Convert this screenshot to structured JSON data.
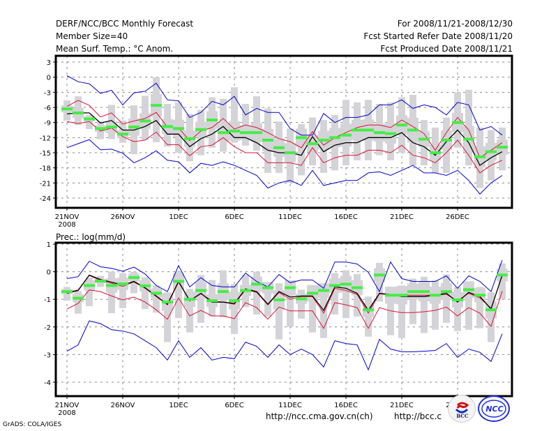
{
  "header": {
    "title": "DERF/NCC/BCC Monthly Forecast",
    "member_size": "Member Size=40",
    "variable_top": "Mean Surf. Temp.: °C Anom.",
    "period": "For 2008/11/21-2008/12/30",
    "start_date": "Fcst Started Refer Date 2008/11/20",
    "produced_date": "Fcst Produced Date 2008/11/21"
  },
  "footer": {
    "url_ncc": "http://ncc.cma.gov.cn(ch)",
    "url_bcc": "http://bcc.c",
    "credit": "GrADS: COLA/IGES",
    "logo_left": "BCC",
    "logo_right": "NCC"
  },
  "colors": {
    "envelope": "#0000cc",
    "quartile": "#dd1133",
    "median": "#000000",
    "box": "#d4d4d8",
    "marker": "#44ee44"
  },
  "chart_data": [
    {
      "type": "line",
      "title": "Mean Surf. Temp.: °C Anom.",
      "xlabel": "",
      "ylabel": "",
      "ylim": [
        -26,
        4
      ],
      "yticks": [
        3,
        0,
        -3,
        -6,
        -9,
        -12,
        -15,
        -18,
        -21,
        -24
      ],
      "ytick_labels": [
        "3",
        "0",
        "-3",
        "-6",
        "-9",
        "-12",
        "-15",
        "-18",
        "-21",
        "-24"
      ],
      "xticks": [
        0,
        5,
        10,
        15,
        20,
        25,
        30,
        35
      ],
      "xtick_labels": [
        "21NOV",
        "26NOV",
        "1DEC",
        "6DEC",
        "11DEC",
        "16DEC",
        "21DEC",
        "26DEC"
      ],
      "xtick_year": "2008",
      "grid": true,
      "x": [
        0,
        1,
        2,
        3,
        4,
        5,
        6,
        7,
        8,
        9,
        10,
        11,
        12,
        13,
        14,
        15,
        16,
        17,
        18,
        19,
        20,
        21,
        22,
        23,
        24,
        25,
        26,
        27,
        28,
        29,
        30,
        31,
        32,
        33,
        34,
        35,
        36,
        37,
        38,
        39
      ],
      "series": [
        {
          "name": "max",
          "values": [
            0.3,
            -0.9,
            -1.3,
            -3.2,
            -2.6,
            -5.5,
            -3.1,
            -2.8,
            -1.2,
            -4.5,
            -4.7,
            -8,
            -7,
            -4.8,
            -5.5,
            -3.8,
            -7.5,
            -6.2,
            -7.0,
            -7.0,
            -10.2,
            -11.5,
            -11.5,
            -7.2,
            -9.0,
            -8,
            -8,
            -7.5,
            -5.5,
            -5.5,
            -4.5,
            -6.2,
            -5.5,
            -6.0,
            -7.5,
            -5.0,
            -5.5,
            -10.5,
            -9.8,
            -11.5
          ]
        },
        {
          "name": "upper_quartile",
          "values": [
            -5.8,
            -4.6,
            -5.6,
            -7.9,
            -7.1,
            -9.3,
            -8.7,
            -8.2,
            -7.0,
            -9.9,
            -10.1,
            -12.6,
            -10.7,
            -10.0,
            -8.2,
            -10.3,
            -9.5,
            -10.0,
            -11.0,
            -12.2,
            -12.8,
            -14.0,
            -10.8,
            -13.5,
            -12.0,
            -11.0,
            -10.0,
            -9.5,
            -9.5,
            -10.0,
            -8.5,
            -9.8,
            -11.2,
            -14.5,
            -11.0,
            -8.0,
            -10.5,
            -16.0,
            -14.5,
            -13.0
          ]
        },
        {
          "name": "median",
          "values": [
            -7.3,
            -7.1,
            -7.1,
            -9.1,
            -8.6,
            -10.5,
            -10.5,
            -9.8,
            -8.6,
            -11.3,
            -11.3,
            -13.8,
            -12.2,
            -11.3,
            -9.8,
            -12.0,
            -12.0,
            -13.0,
            -14.5,
            -15.0,
            -15.0,
            -15.5,
            -11.8,
            -14.8,
            -13.5,
            -13.0,
            -13.0,
            -12.0,
            -12.0,
            -12.0,
            -11.0,
            -13.0,
            -13.8,
            -15.5,
            -12.8,
            -10.5,
            -13.0,
            -17.5,
            -16.0,
            -14.8
          ]
        },
        {
          "name": "lower_quartile",
          "values": [
            -8.8,
            -9.2,
            -8.8,
            -10.7,
            -10.1,
            -11.8,
            -12.8,
            -12.5,
            -10.9,
            -13.4,
            -13.4,
            -15.6,
            -13.8,
            -13.5,
            -12.0,
            -13.8,
            -15.0,
            -15.0,
            -17.0,
            -17.0,
            -17.0,
            -17.5,
            -14.0,
            -17.0,
            -16.0,
            -15.5,
            -15.5,
            -14.5,
            -14.5,
            -15.0,
            -13.5,
            -15.5,
            -16.0,
            -17.0,
            -15.0,
            -12.5,
            -15.5,
            -19.0,
            -17.5,
            -16.5
          ]
        },
        {
          "name": "min",
          "values": [
            -14.0,
            -13.2,
            -12.4,
            -14.4,
            -14.3,
            -15.1,
            -17.0,
            -16.0,
            -14.6,
            -16.5,
            -16.8,
            -19.0,
            -17.1,
            -17.5,
            -16.8,
            -17.5,
            -18.5,
            -19.5,
            -22.0,
            -21.0,
            -20.5,
            -21.5,
            -18.5,
            -21.5,
            -21.0,
            -20.5,
            -20.5,
            -19.0,
            -18.8,
            -19.5,
            -18.5,
            -17.5,
            -19.0,
            -19.0,
            -19.5,
            -18.5,
            -20.5,
            -23.2,
            -21.0,
            -19.5
          ]
        },
        {
          "name": "ensemble_mean_marker",
          "values": [
            -6.3,
            -7.1,
            -8.3,
            -10.2,
            -9.9,
            -11.3,
            -9.9,
            -8.7,
            -5.6,
            -9.8,
            -10.2,
            -12.2,
            -10.4,
            -8.5,
            -11.0,
            -10.7,
            -11.0,
            -11.0,
            -12.5,
            -14.0,
            -15.0,
            -12.0,
            -13.2,
            -12.5,
            -12.0,
            -11.5,
            -10.5,
            -10.5,
            -11.0,
            -11.2,
            -9.5,
            -10.5,
            -12.3,
            -15.0,
            -12.5,
            -9.0,
            -12.3,
            -15.8,
            -14.8,
            -13.9
          ]
        }
      ],
      "box_ranges": [
        [
          -4.6,
          -8.6
        ],
        [
          -3.8,
          -9.5
        ],
        [
          -7.5,
          -10.3
        ],
        [
          -8.8,
          -12.3
        ],
        [
          -5.5,
          -12.3
        ],
        [
          -8.6,
          -13.0
        ],
        [
          -5.6,
          -15.3
        ],
        [
          -3.7,
          -12.5
        ],
        [
          0,
          -12.9
        ],
        [
          -5.3,
          -13.8
        ],
        [
          -5.0,
          -15.0
        ],
        [
          -7.3,
          -16.7
        ],
        [
          -6.5,
          -15.5
        ],
        [
          -4.0,
          -14.0
        ],
        [
          -4.3,
          -14.8
        ],
        [
          -2.0,
          -13.0
        ],
        [
          -5.3,
          -13.6
        ],
        [
          -3.8,
          -14.6
        ],
        [
          -6.2,
          -19.0
        ],
        [
          -8.8,
          -19.0
        ],
        [
          -10.2,
          -21.0
        ],
        [
          -9.3,
          -19.5
        ],
        [
          -8.0,
          -17.5
        ],
        [
          -8.5,
          -19.0
        ],
        [
          -7.5,
          -18.5
        ],
        [
          -4.5,
          -17.5
        ],
        [
          -5.0,
          -16.5
        ],
        [
          -4.5,
          -16.5
        ],
        [
          -5.3,
          -15.5
        ],
        [
          -5.0,
          -16.5
        ],
        [
          -4.0,
          -15.0
        ],
        [
          -3.5,
          -17.5
        ],
        [
          -8.5,
          -17.5
        ],
        [
          -10.0,
          -19.0
        ],
        [
          -8.0,
          -19.0
        ],
        [
          -3.0,
          -14.0
        ],
        [
          -2.5,
          -17.5
        ],
        [
          -10.0,
          -22.0
        ],
        [
          -10.5,
          -20.5
        ],
        [
          -10.0,
          -18.5
        ]
      ]
    },
    {
      "type": "line",
      "title": "Prec.: log(mm/d)",
      "xlabel": "",
      "ylabel": "",
      "ylim": [
        -4.5,
        1
      ],
      "yticks": [
        1,
        0,
        -1,
        -2,
        -3,
        -4
      ],
      "ytick_labels": [
        "1",
        "0",
        "-1",
        "-2",
        "-3",
        "-4"
      ],
      "xticks": [
        0,
        5,
        10,
        15,
        20,
        25,
        30,
        35
      ],
      "xtick_labels": [
        "21NOV",
        "26NOV",
        "1DEC",
        "6DEC",
        "11DEC",
        "16DEC",
        "21DEC",
        "26DEC"
      ],
      "xtick_year": "2008",
      "grid": true,
      "x": [
        0,
        1,
        2,
        3,
        4,
        5,
        6,
        7,
        8,
        9,
        10,
        11,
        12,
        13,
        14,
        15,
        16,
        17,
        18,
        19,
        20,
        21,
        22,
        23,
        24,
        25,
        26,
        27,
        28,
        29,
        30,
        31,
        32,
        33,
        34,
        35,
        36,
        37,
        38,
        39
      ],
      "series": [
        {
          "name": "max",
          "values": [
            -0.25,
            -0.18,
            0.38,
            0.18,
            0.12,
            0.02,
            0.17,
            -0.08,
            -0.5,
            -0.72,
            0.22,
            -0.55,
            -0.22,
            -0.5,
            -0.55,
            -0.55,
            -0.05,
            -0.35,
            -0.55,
            -0.1,
            -0.4,
            -0.3,
            -0.3,
            -0.6,
            0.35,
            0.35,
            0.28,
            -0.02,
            -0.72,
            0.35,
            -0.25,
            -0.35,
            -0.35,
            -0.35,
            -0.15,
            -0.6,
            -0.15,
            -0.35,
            -0.72,
            0.42
          ]
        },
        {
          "name": "upper_quartile",
          "values": [
            -0.75,
            -0.66,
            -0.14,
            -0.32,
            -0.42,
            -0.53,
            -0.37,
            -0.6,
            -0.9,
            -1.2,
            -0.38,
            -1.05,
            -0.8,
            -1.05,
            -1.1,
            -1.18,
            -0.65,
            -0.75,
            -1.2,
            -0.75,
            -1.0,
            -0.9,
            -0.9,
            -1.5,
            -0.6,
            -0.68,
            -0.82,
            -1.5,
            -0.8,
            -0.85,
            -0.85,
            -0.85,
            -0.85,
            -0.85,
            -0.82,
            -1.05,
            -0.78,
            -0.95,
            -1.32,
            -0.15
          ]
        },
        {
          "name": "median",
          "values": [
            -0.78,
            -0.68,
            -0.12,
            -0.28,
            -0.38,
            -0.48,
            -0.35,
            -0.58,
            -0.88,
            -1.18,
            -0.35,
            -1.05,
            -0.78,
            -1.1,
            -1.1,
            -1.15,
            -0.62,
            -0.72,
            -1.18,
            -0.72,
            -0.92,
            -0.88,
            -0.88,
            -1.4,
            -0.55,
            -0.6,
            -0.78,
            -1.4,
            -0.78,
            -0.82,
            -0.9,
            -0.9,
            -0.9,
            -0.85,
            -0.78,
            -1.1,
            -0.75,
            -0.9,
            -1.35,
            -0.12
          ]
        },
        {
          "name": "lower_quartile",
          "values": [
            -1.35,
            -1.15,
            -0.66,
            -0.72,
            -0.88,
            -1.02,
            -0.92,
            -1.1,
            -1.38,
            -1.72,
            -0.95,
            -1.6,
            -1.4,
            -1.6,
            -1.6,
            -1.7,
            -1.12,
            -1.3,
            -1.72,
            -1.28,
            -1.42,
            -1.42,
            -1.42,
            -2.05,
            -1.12,
            -1.2,
            -1.3,
            -2.05,
            -1.3,
            -1.42,
            -1.48,
            -1.48,
            -1.45,
            -1.4,
            -1.28,
            -1.6,
            -1.3,
            -1.5,
            -1.98,
            -0.7
          ]
        },
        {
          "name": "min",
          "values": [
            -2.88,
            -2.65,
            -1.78,
            -1.88,
            -2.1,
            -2.15,
            -2.25,
            -2.5,
            -2.75,
            -3.2,
            -2.5,
            -3.1,
            -2.75,
            -3.2,
            -3.1,
            -3.15,
            -2.55,
            -2.7,
            -3.1,
            -2.65,
            -3.0,
            -2.8,
            -3.0,
            -3.45,
            -2.5,
            -2.6,
            -2.65,
            -3.55,
            -2.45,
            -2.8,
            -2.9,
            -2.9,
            -2.88,
            -2.85,
            -2.6,
            -3.1,
            -2.8,
            -2.92,
            -3.25,
            -2.25
          ]
        },
        {
          "name": "ensemble_mean_marker",
          "values": [
            -0.72,
            -0.96,
            -0.5,
            -0.34,
            -0.5,
            -0.44,
            -0.21,
            -0.51,
            -0.78,
            -1.1,
            -0.35,
            -1.0,
            -0.68,
            -1.05,
            -0.72,
            -1.05,
            -0.68,
            -0.45,
            -0.58,
            -1.02,
            -0.58,
            -0.98,
            -0.78,
            -0.68,
            -0.5,
            -0.45,
            -0.58,
            -1.38,
            -0.12,
            -0.85,
            -0.85,
            -0.72,
            -0.72,
            -0.85,
            -0.72,
            -1.02,
            -0.65,
            -0.85,
            -1.38,
            -0.12
          ]
        }
      ],
      "box_ranges": [
        [
          -0.55,
          -1.05
        ],
        [
          -0.7,
          -1.52
        ],
        [
          -0.22,
          -1.25
        ],
        [
          -0.15,
          -0.55
        ],
        [
          0,
          -1.5
        ],
        [
          -0.05,
          -1.32
        ],
        [
          0,
          -0.78
        ],
        [
          -0.2,
          -1.35
        ],
        [
          -0.5,
          -1.48
        ],
        [
          -0.75,
          -2.55
        ],
        [
          0,
          -1.68
        ],
        [
          -0.62,
          -2.2
        ],
        [
          -0.12,
          -1.85
        ],
        [
          -0.3,
          -1.62
        ],
        [
          0.05,
          -1.65
        ],
        [
          -0.45,
          -2.25
        ],
        [
          -0.12,
          -1.28
        ],
        [
          0,
          -1.55
        ],
        [
          -0.42,
          -1.62
        ],
        [
          -0.42,
          -2.45
        ],
        [
          -0.45,
          -2.0
        ],
        [
          -0.65,
          -1.7
        ],
        [
          -0.5,
          -2.2
        ],
        [
          -0.9,
          -2.4
        ],
        [
          -0.05,
          -1.55
        ],
        [
          0.05,
          -1.68
        ],
        [
          -0.08,
          -1.62
        ],
        [
          -0.9,
          -2.35
        ],
        [
          0.32,
          -1.08
        ],
        [
          -0.55,
          -2.3
        ],
        [
          -0.5,
          -2.4
        ],
        [
          -0.25,
          -1.9
        ],
        [
          -0.18,
          -2.22
        ],
        [
          -0.32,
          -2.1
        ],
        [
          -0.1,
          -1.85
        ],
        [
          -0.55,
          -2.15
        ],
        [
          -0.38,
          -2.1
        ],
        [
          -0.55,
          -2.05
        ],
        [
          -0.75,
          -2.55
        ],
        [
          0.3,
          -1.0
        ]
      ]
    }
  ]
}
